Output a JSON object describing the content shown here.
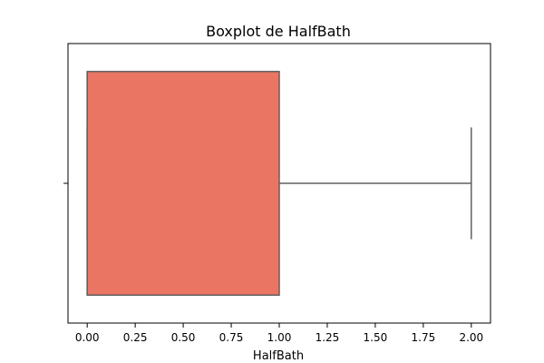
{
  "chart_data": {
    "type": "boxplot",
    "title": "Boxplot de HalfBath",
    "xlabel": "HalfBath",
    "ylabel": "",
    "orientation": "horizontal",
    "xlim": [
      -0.1,
      2.1
    ],
    "xticks": [
      0.0,
      0.25,
      0.5,
      0.75,
      1.0,
      1.25,
      1.5,
      1.75,
      2.0
    ],
    "xtick_labels": [
      "0.00",
      "0.25",
      "0.50",
      "0.75",
      "1.00",
      "1.25",
      "1.50",
      "1.75",
      "2.00"
    ],
    "yticks": [
      ""
    ],
    "grid": false,
    "series": [
      {
        "min": 0,
        "q1": 0,
        "median": 0,
        "q3": 1,
        "max": 2,
        "outliers": []
      }
    ],
    "colors": {
      "box_fill": "#ea7563",
      "box_edge": "#606060",
      "frame": "#000000"
    }
  }
}
